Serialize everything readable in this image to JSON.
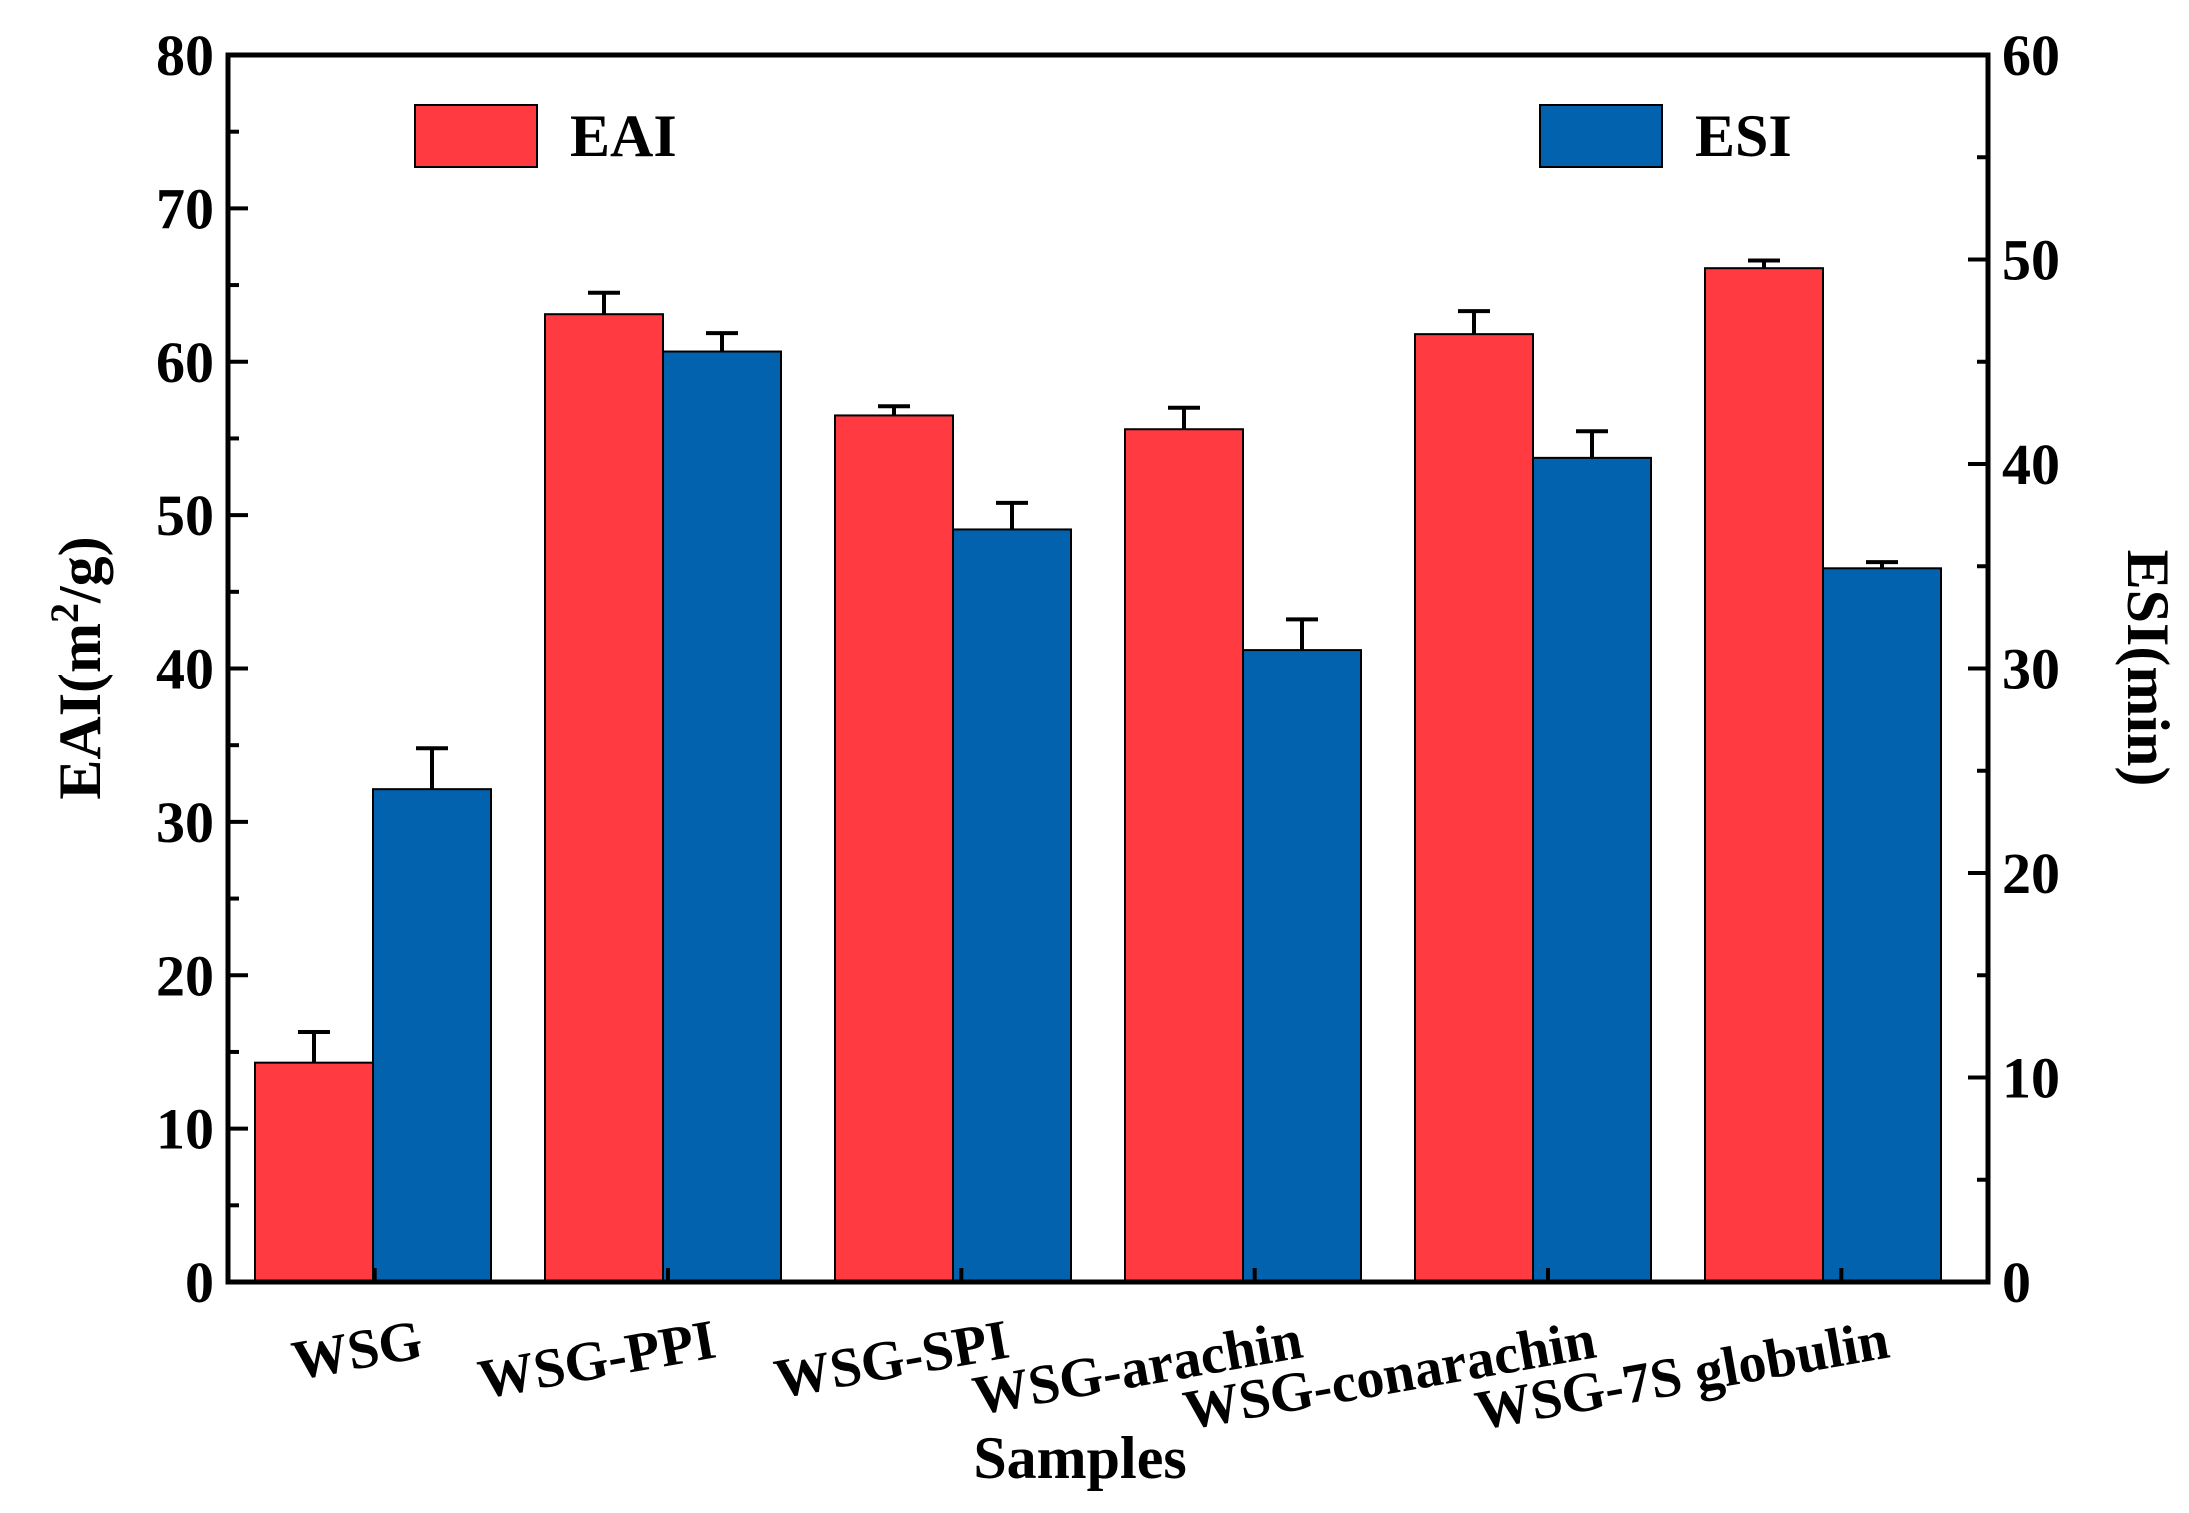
{
  "chart_data": {
    "type": "bar",
    "title": "",
    "categories": [
      "WSG",
      "WSG-PPI",
      "WSG-SPI",
      "WSG-arachin",
      "WSG-conarachin",
      "WSG-7S globulin"
    ],
    "xlabel": "Samples",
    "ylabel_left": {
      "base": "EAI(m",
      "sup": "2",
      "tail": "/g)"
    },
    "ylabel_right": "ESI(min)",
    "ylim_left": [
      0,
      80
    ],
    "yticks_left": [
      0,
      10,
      20,
      30,
      40,
      50,
      60,
      70,
      80
    ],
    "ylim_right": [
      0,
      60
    ],
    "yticks_right": [
      0,
      10,
      20,
      30,
      40,
      50,
      60
    ],
    "grid": false,
    "legend_placement": "top",
    "series": [
      {
        "name": "EAI",
        "axis": "left",
        "color": "#ff3b41",
        "values": [
          14.3,
          63.1,
          56.5,
          55.6,
          61.8,
          66.1
        ],
        "errors": [
          2.0,
          1.4,
          0.6,
          1.4,
          1.5,
          0.5
        ]
      },
      {
        "name": "ESI",
        "axis": "right",
        "color": "#0362ad",
        "values": [
          24.1,
          45.5,
          36.8,
          30.9,
          40.3,
          34.9
        ],
        "errors": [
          2.0,
          0.9,
          1.3,
          1.5,
          1.3,
          0.3
        ]
      }
    ]
  }
}
